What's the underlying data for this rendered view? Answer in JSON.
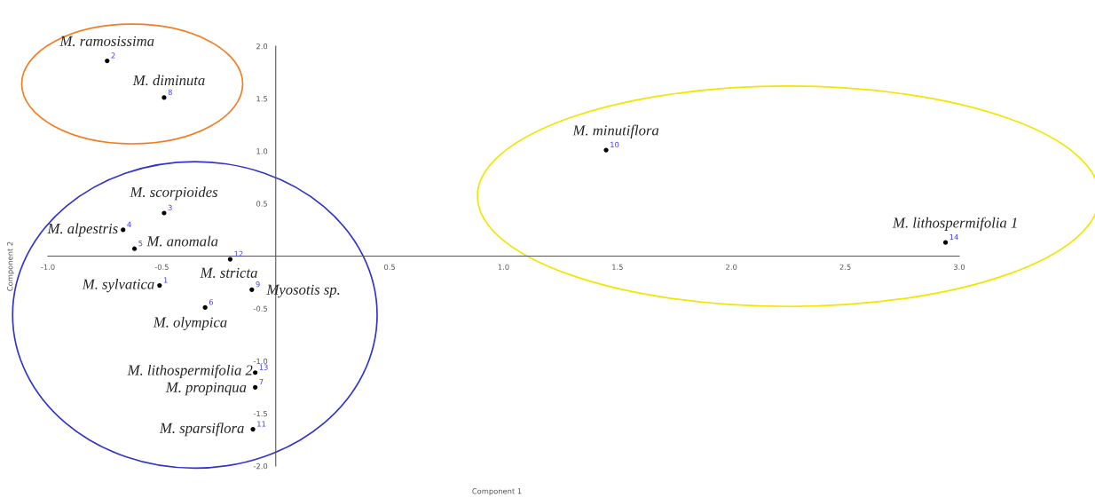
{
  "chart_data": {
    "type": "scatter",
    "xlabel": "Component 1",
    "ylabel": "Component 2",
    "xlim": [
      -1.0,
      3.0
    ],
    "ylim": [
      -2.0,
      2.0
    ],
    "xticks": [
      {
        "value": -1.0,
        "label": "-1.0"
      },
      {
        "value": -0.5,
        "label": "-0.5"
      },
      {
        "value": 0.5,
        "label": "0.5"
      },
      {
        "value": 1.0,
        "label": "1.0"
      },
      {
        "value": 1.5,
        "label": "1.5"
      },
      {
        "value": 2.0,
        "label": "2.0"
      },
      {
        "value": 2.5,
        "label": "2.5"
      },
      {
        "value": 3.0,
        "label": "3.0"
      }
    ],
    "yticks": [
      {
        "value": -2.0,
        "label": "-2.0"
      },
      {
        "value": -1.5,
        "label": "-1.5"
      },
      {
        "value": -1.0,
        "label": "-1.0"
      },
      {
        "value": -0.5,
        "label": "-0.5"
      },
      {
        "value": 0.5,
        "label": "0.5"
      },
      {
        "value": 1.0,
        "label": "1.0"
      },
      {
        "value": 1.5,
        "label": "1.5"
      },
      {
        "value": 2.0,
        "label": "2.0"
      }
    ],
    "grid": false,
    "marker": "circle",
    "series": [
      {
        "color": "#000000",
        "x": [
          -0.51,
          -0.74,
          -0.49,
          -0.67,
          -0.62,
          -0.31,
          -0.09,
          -0.49,
          -0.105,
          1.45,
          -0.1,
          -0.2,
          -0.09,
          2.94
        ],
        "values": [
          -0.28,
          1.86,
          0.41,
          0.25,
          0.07,
          -0.49,
          -1.25,
          1.51,
          -0.32,
          1.01,
          -1.65,
          -0.03,
          -1.11,
          0.13
        ]
      }
    ],
    "annotations": [
      {
        "text": "M. sylvatica",
        "x": -0.51,
        "y": -0.28
      },
      {
        "text": "M. ramosissima",
        "x": -0.74,
        "y": 1.86
      },
      {
        "text": "M. scorpioides",
        "x": -0.49,
        "y": 0.41
      },
      {
        "text": "M. alpestris",
        "x": -0.67,
        "y": 0.25
      },
      {
        "text": "M. anomala",
        "x": -0.62,
        "y": 0.07
      },
      {
        "text": "M. olympica",
        "x": -0.31,
        "y": -0.49
      },
      {
        "text": "M. propinqua",
        "x": -0.09,
        "y": -1.25
      },
      {
        "text": "M. diminuta",
        "x": -0.49,
        "y": 1.51
      },
      {
        "text": "Myosotis sp.",
        "x": -0.105,
        "y": -0.32
      },
      {
        "text": "M. minutiflora",
        "x": 1.45,
        "y": 1.01
      },
      {
        "text": "M. sparsiflora",
        "x": -0.1,
        "y": -1.65
      },
      {
        "text": "M. stricta",
        "x": -0.2,
        "y": -0.03
      },
      {
        "text": "M. lithospermifolia 2",
        "x": -0.09,
        "y": -1.11
      },
      {
        "text": "M. lithospermifolia 1",
        "x": 2.94,
        "y": 0.13
      },
      {
        "text": "1",
        "x": -0.51,
        "y": -0.28
      },
      {
        "text": "2",
        "x": -0.74,
        "y": 1.86
      },
      {
        "text": "3",
        "x": -0.49,
        "y": 0.41
      },
      {
        "text": "4",
        "x": -0.67,
        "y": 0.25
      },
      {
        "text": "5",
        "x": -0.62,
        "y": 0.07
      },
      {
        "text": "6",
        "x": -0.31,
        "y": -0.49
      },
      {
        "text": "7",
        "x": -0.09,
        "y": -1.25
      },
      {
        "text": "8",
        "x": -0.49,
        "y": 1.51
      },
      {
        "text": "9",
        "x": -0.105,
        "y": -0.32
      },
      {
        "text": "10",
        "x": 1.45,
        "y": 1.01
      },
      {
        "text": "11",
        "x": -0.1,
        "y": -1.65
      },
      {
        "text": "12",
        "x": -0.2,
        "y": -0.03
      },
      {
        "text": "13",
        "x": -0.09,
        "y": -1.11
      },
      {
        "text": "14",
        "x": 2.94,
        "y": 0.13
      }
    ]
  }
}
